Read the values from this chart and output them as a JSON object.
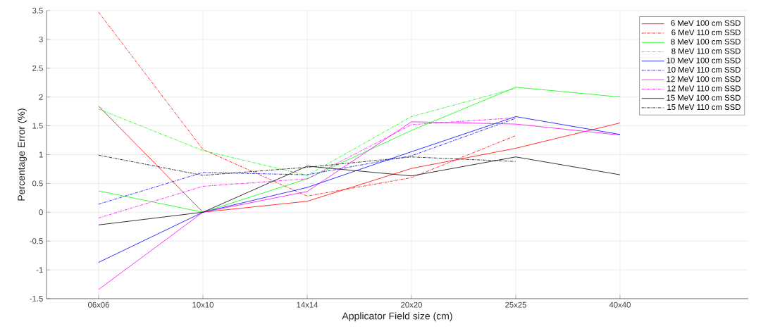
{
  "chart_data": {
    "type": "line",
    "xlabel": "Applicator Field size (cm)",
    "ylabel": "Percentage Error (%)",
    "categories": [
      "06x06",
      "10x10",
      "14x14",
      "20x20",
      "25x25",
      "40x40"
    ],
    "ylim": [
      -1.5,
      3.5
    ],
    "yticks": [
      -1.5,
      -1,
      -0.5,
      0,
      0.5,
      1,
      1.5,
      2,
      2.5,
      3,
      3.5
    ],
    "grid": true,
    "legend": "top right",
    "marker": "none",
    "series": [
      {
        "name": "6 MeV 100 cm SSD",
        "color": "#ff0000",
        "line_style": "solid",
        "values": [
          1.84,
          0,
          0.19,
          0.76,
          1.11,
          1.55
        ]
      },
      {
        "name": "6 MeV 110 cm SSD",
        "color": "#ff0000",
        "line_style": "dashdot",
        "values": [
          3.47,
          1.09,
          0.28,
          0.6,
          1.33,
          null
        ]
      },
      {
        "name": "8 MeV 100 cm SSD",
        "color": "#00ff00",
        "line_style": "solid",
        "values": [
          0.37,
          0,
          0.58,
          1.42,
          2.17,
          2.0
        ]
      },
      {
        "name": "8 MeV 110 cm SSD",
        "color": "#00ff00",
        "line_style": "dashdot",
        "values": [
          1.79,
          1.07,
          0.64,
          1.66,
          2.15,
          null
        ]
      },
      {
        "name": "10 MeV 100 cm SSD",
        "color": "#0000ff",
        "line_style": "solid",
        "values": [
          -0.87,
          0,
          0.43,
          1.05,
          1.66,
          1.35
        ]
      },
      {
        "name": "10 MeV 110 cm SSD",
        "color": "#0000ff",
        "line_style": "dashdot",
        "values": [
          0.14,
          0.69,
          0.65,
          0.98,
          1.63,
          null
        ]
      },
      {
        "name": "12 MeV 100 cm SSD",
        "color": "#ff00ff",
        "line_style": "solid",
        "values": [
          -1.34,
          0,
          0.36,
          1.57,
          1.53,
          1.34
        ]
      },
      {
        "name": "12 MeV 110 cm SSD",
        "color": "#ff00ff",
        "line_style": "dashdot",
        "values": [
          -0.1,
          0.45,
          0.58,
          1.52,
          1.64,
          null
        ]
      },
      {
        "name": "15 MeV 100 cm SSD",
        "color": "#000000",
        "line_style": "solid",
        "values": [
          -0.22,
          0,
          0.8,
          0.63,
          0.96,
          0.65
        ]
      },
      {
        "name": "15 MeV 110 cm SSD",
        "color": "#000000",
        "line_style": "dashdot",
        "values": [
          0.99,
          0.64,
          0.78,
          0.96,
          0.88,
          null
        ]
      }
    ]
  }
}
